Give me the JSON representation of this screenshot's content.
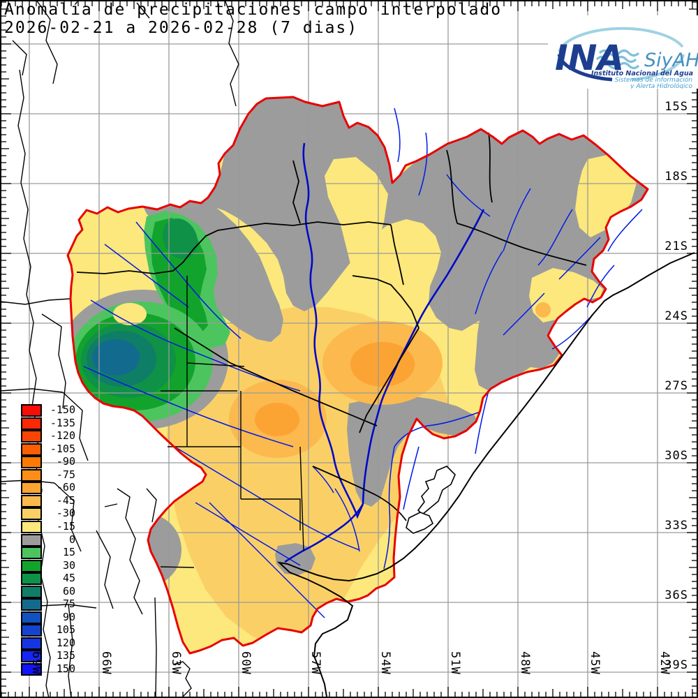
{
  "title": {
    "line1": "Anomalía de precipitaciones campo interpolado",
    "line2": "2026-02-21 a 2026-02-28 (7 dias)"
  },
  "logo": {
    "ina": "INA",
    "siyah": "SiyAH",
    "line1": "Instituto Nacional del Agua",
    "line2": "Sistemas de información",
    "line3": "y Alerta Hidrológico",
    "dark_blue": "#1d3e8f",
    "medium_blue": "#4690c0",
    "light_blue": "#9fd2e2"
  },
  "axes": {
    "lat": [
      "15S",
      "18S",
      "21S",
      "24S",
      "27S",
      "30S",
      "33S",
      "36S",
      "39S"
    ],
    "lon": [
      "69W",
      "66W",
      "63W",
      "60W",
      "57W",
      "54W",
      "51W",
      "48W",
      "45W",
      "42W"
    ]
  },
  "legend": {
    "items": [
      {
        "value": "-150",
        "key": "n150"
      },
      {
        "value": "-135",
        "key": "n135"
      },
      {
        "value": "-120",
        "key": "n120"
      },
      {
        "value": "-105",
        "key": "n105"
      },
      {
        "value": "-90",
        "key": "n90"
      },
      {
        "value": "-75",
        "key": "n75"
      },
      {
        "value": "-60",
        "key": "n60"
      },
      {
        "value": "-45",
        "key": "n45"
      },
      {
        "value": "-30",
        "key": "n30"
      },
      {
        "value": "-15",
        "key": "n15"
      },
      {
        "value": "0",
        "key": "zero"
      },
      {
        "value": "15",
        "key": "p15"
      },
      {
        "value": "30",
        "key": "p30"
      },
      {
        "value": "45",
        "key": "p45"
      },
      {
        "value": "60",
        "key": "p60"
      },
      {
        "value": "75",
        "key": "p75"
      },
      {
        "value": "90",
        "key": "p90"
      },
      {
        "value": "105",
        "key": "p105"
      },
      {
        "value": "120",
        "key": "p120"
      },
      {
        "value": "135",
        "key": "p135"
      },
      {
        "value": "150",
        "key": "p150"
      }
    ]
  },
  "map": {
    "palette": {
      "n150": "#f90d06",
      "n135": "#fa2805",
      "n120": "#fb4304",
      "n105": "#fc5e03",
      "n90": "#fd7902",
      "n75": "#fc8e18",
      "n60": "#fba433",
      "n45": "#fbb94e",
      "n30": "#fad066",
      "n15": "#fce87c",
      "zero": "#9c9c9c",
      "p15": "#4cc55f",
      "p30": "#12a32c",
      "p45": "#0f9148",
      "p60": "#0f7e66",
      "p75": "#126b8e",
      "p90": "#1251c0",
      "p105": "#1443d0",
      "p120": "#1535e2",
      "p135": "#1626f2",
      "p150": "#1114fc"
    },
    "colors": {
      "grid": "#9a9a9a",
      "river": "#0019e6",
      "major_river": "#000ac8",
      "border": "#000000",
      "basin": "#e80000",
      "coast": "#000000",
      "tick": "#000000",
      "frame": "#000000"
    }
  }
}
